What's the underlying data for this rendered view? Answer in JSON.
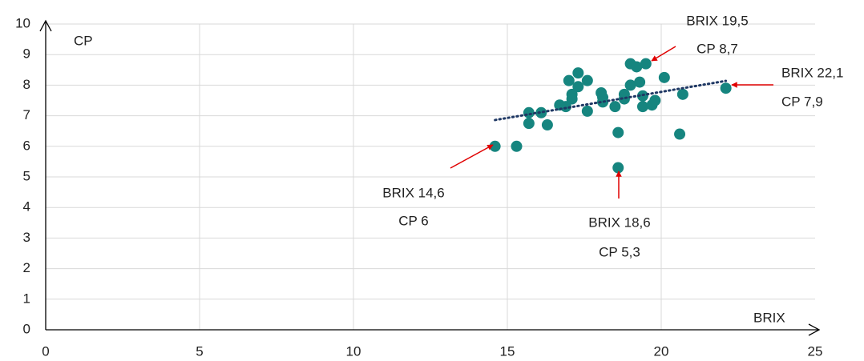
{
  "chart_data": {
    "type": "scatter",
    "x_label": "BRIX",
    "y_label": "CP",
    "xlim": [
      0,
      25
    ],
    "xticks": [
      0,
      5,
      10,
      15,
      20,
      25
    ],
    "ylim": [
      0,
      10
    ],
    "yticks": [
      0,
      1,
      2,
      3,
      4,
      5,
      6,
      7,
      8,
      9,
      10
    ],
    "grid": true,
    "color": "#16857f",
    "x": [
      14.6,
      15.3,
      15.7,
      15.7,
      16.1,
      16.3,
      16.7,
      16.9,
      17.0,
      17.1,
      17.1,
      17.3,
      17.3,
      17.6,
      17.6,
      18.05,
      18.1,
      18.1,
      18.5,
      18.6,
      18.6,
      18.8,
      18.8,
      19.0,
      19.0,
      19.2,
      19.3,
      19.4,
      19.4,
      19.5,
      19.7,
      19.8,
      20.1,
      20.6,
      20.7,
      22.1
    ],
    "y": [
      6,
      6.0,
      7.1,
      6.75,
      7.1,
      6.7,
      7.35,
      7.3,
      8.15,
      7.7,
      7.55,
      7.95,
      8.4,
      8.15,
      7.15,
      7.75,
      7.6,
      7.45,
      7.3,
      6.45,
      5.3,
      7.7,
      7.55,
      8.7,
      8.0,
      8.6,
      8.1,
      7.3,
      7.65,
      8.7,
      7.35,
      7.5,
      8.25,
      6.4,
      7.7,
      7.9
    ],
    "trendline": {
      "color": "#1f3864",
      "x": [
        14.6,
        22.1
      ],
      "y": [
        6.86,
        8.14
      ]
    },
    "annotations": [
      {
        "text": [
          "BRIX 19,5",
          "CP 8,7"
        ]
      },
      {
        "text": [
          "BRIX 22,1",
          "CP 7,9"
        ]
      },
      {
        "text": [
          "BRIX 14,6",
          "CP 6"
        ]
      },
      {
        "text": [
          "BRIX 18,6",
          "CP 5,3"
        ]
      }
    ]
  }
}
